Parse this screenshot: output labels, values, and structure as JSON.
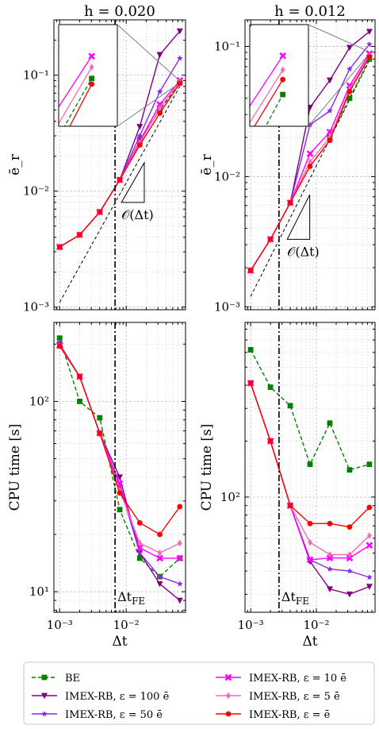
{
  "chart_data": {
    "type": "line",
    "xscale": "log",
    "yscale": "log",
    "grid": true,
    "legend_placement": "bottom, 2 columns",
    "x": [
      0.001,
      0.002,
      0.004,
      0.008,
      0.016,
      0.032,
      0.064
    ],
    "xlabel": "Δt",
    "xticks": [
      "10⁻³",
      "10⁻²"
    ],
    "legend": [
      {
        "name": "BE",
        "color": "#008000",
        "marker": "square",
        "dash": true
      },
      {
        "name": "IMEX-RB, ε = 100 ē",
        "color": "#800080",
        "marker": "triangle-down",
        "dash": false
      },
      {
        "name": "IMEX-RB, ε = 50 ē",
        "color": "#8A2BE2",
        "marker": "star",
        "dash": false
      },
      {
        "name": "IMEX-RB, ε = 10 ē",
        "color": "#FF00FF",
        "marker": "x",
        "dash": false
      },
      {
        "name": "IMEX-RB, ε = 5 ē",
        "color": "#FF69B4",
        "marker": "diamond",
        "dash": false
      },
      {
        "name": "IMEX-RB, ε = ē",
        "color": "#FF0000",
        "marker": "circle",
        "dash": false
      }
    ],
    "panels": [
      {
        "id": "err-h020",
        "title": "h = 0.020",
        "ylabel": "ē_r",
        "ylim": [
          0.00095,
          0.3
        ],
        "yticks": [
          {
            "v": 0.001,
            "t": "10⁻³"
          },
          {
            "v": 0.01,
            "t": "10⁻²"
          },
          {
            "v": 0.1,
            "t": "10⁻¹"
          }
        ],
        "vline": 0.0068,
        "annotation": "𝒪(Δt)",
        "dt_fe_label": "",
        "reference_line": [
          [
            0.001,
            0.0011
          ],
          [
            0.064,
            0.08
          ]
        ],
        "series": [
          {
            "name": "BE",
            "values": [
              null,
              null,
              null,
              null,
              0.028,
              0.05,
              0.086
            ]
          },
          {
            "name": "IMEX-RB, ε = 100 ē",
            "values": [
              0.0033,
              0.0042,
              0.0066,
              0.0125,
              0.036,
              0.15,
              0.24
            ]
          },
          {
            "name": "IMEX-RB, ε = 50 ē",
            "values": [
              0.0033,
              0.0042,
              0.0066,
              0.0125,
              0.03,
              0.072,
              0.14
            ]
          },
          {
            "name": "IMEX-RB, ε = 10 ē",
            "values": [
              0.0033,
              0.0042,
              0.0066,
              0.0125,
              0.027,
              0.056,
              0.09
            ]
          },
          {
            "name": "IMEX-RB, ε = 5 ē",
            "values": [
              0.0033,
              0.0042,
              0.0066,
              0.0125,
              0.026,
              0.052,
              0.088
            ]
          },
          {
            "name": "IMEX-RB, ε = ē",
            "values": [
              0.0033,
              0.0042,
              0.0066,
              0.0125,
              0.025,
              0.047,
              0.085
            ]
          }
        ]
      },
      {
        "id": "err-h012",
        "title": "h = 0.012",
        "ylabel": "ē_r",
        "ylim": [
          0.00095,
          0.16
        ],
        "yticks": [
          {
            "v": 0.001,
            "t": "10⁻³"
          },
          {
            "v": 0.01,
            "t": "10⁻²"
          },
          {
            "v": 0.1,
            "t": "10⁻¹"
          }
        ],
        "vline": 0.0027,
        "annotation": "𝒪(Δt)",
        "dt_fe_label": "",
        "reference_line": [
          [
            0.001,
            0.0012
          ],
          [
            0.064,
            0.078
          ]
        ],
        "series": [
          {
            "name": "BE",
            "values": [
              null,
              null,
              null,
              null,
              0.02,
              0.04,
              0.08
            ]
          },
          {
            "name": "IMEX-RB, ε = 100 ē",
            "values": [
              0.0019,
              0.0033,
              0.0063,
              0.034,
              0.055,
              0.098,
              0.13
            ]
          },
          {
            "name": "IMEX-RB, ε = 50 ē",
            "values": [
              0.0019,
              0.0033,
              0.0063,
              0.025,
              0.032,
              0.067,
              0.104
            ]
          },
          {
            "name": "IMEX-RB, ε = 10 ē",
            "values": [
              0.0019,
              0.0033,
              0.0063,
              0.015,
              0.022,
              0.05,
              0.088
            ]
          },
          {
            "name": "IMEX-RB, ε = 5 ē",
            "values": [
              0.0019,
              0.0033,
              0.0063,
              0.013,
              0.02,
              0.047,
              0.085
            ]
          },
          {
            "name": "IMEX-RB, ε = ē",
            "values": [
              0.0019,
              0.0033,
              0.0063,
              0.012,
              0.019,
              0.045,
              0.083
            ]
          }
        ]
      },
      {
        "id": "cpu-h020",
        "title": "",
        "ylabel": "CPU time [s]",
        "ylim": [
          7.8,
          260
        ],
        "yticks": [
          {
            "v": 10,
            "t": "10¹"
          },
          {
            "v": 100,
            "t": "10²"
          }
        ],
        "vline": 0.0068,
        "annotation": "",
        "dt_fe_label": "Δt_FE",
        "reference_line": null,
        "series": [
          {
            "name": "BE",
            "values": [
              215,
              100,
              82,
              27,
              15,
              12,
              15
            ]
          },
          {
            "name": "IMEX-RB, ε = 100 ē",
            "values": [
              200,
              135,
              68,
              40,
              16,
              11,
              9
            ]
          },
          {
            "name": "IMEX-RB, ε = 50 ē",
            "values": [
              198,
              135,
              68,
              36,
              16,
              12,
              11
            ]
          },
          {
            "name": "IMEX-RB, ε = 10 ē",
            "values": [
              197,
              135,
              68,
              37,
              17,
              15,
              15
            ]
          },
          {
            "name": "IMEX-RB, ε = 5 ē",
            "values": [
              196,
              135,
              68,
              34,
              18,
              16,
              18
            ]
          },
          {
            "name": "IMEX-RB, ε = ē",
            "values": [
              195,
              135,
              68,
              33,
              23,
              20,
              28
            ]
          }
        ]
      },
      {
        "id": "cpu-h012",
        "title": "",
        "ylabel": "CPU time [s]",
        "ylim": [
          24,
          870
        ],
        "yticks": [
          {
            "v": 100,
            "t": "10²"
          }
        ],
        "vline": 0.0027,
        "annotation": "",
        "dt_fe_label": "Δt_FE",
        "reference_line": null,
        "series": [
          {
            "name": "BE",
            "values": [
              620,
              390,
              310,
              150,
              250,
              140,
              150
            ]
          },
          {
            "name": "IMEX-RB, ε = 100 ē",
            "values": [
              410,
              200,
              90,
              45,
              32,
              30,
              33
            ]
          },
          {
            "name": "IMEX-RB, ε = 50 ē",
            "values": [
              410,
              200,
              90,
              46,
              41,
              40,
              37
            ]
          },
          {
            "name": "IMEX-RB, ε = 10 ē",
            "values": [
              410,
              200,
              90,
              46,
              47,
              47,
              55
            ]
          },
          {
            "name": "IMEX-RB, ε = 5 ē",
            "values": [
              410,
              200,
              90,
              57,
              49,
              49,
              62
            ]
          },
          {
            "name": "IMEX-RB, ε = ē",
            "values": [
              410,
              200,
              90,
              72,
              72,
              69,
              88
            ]
          }
        ]
      }
    ]
  }
}
